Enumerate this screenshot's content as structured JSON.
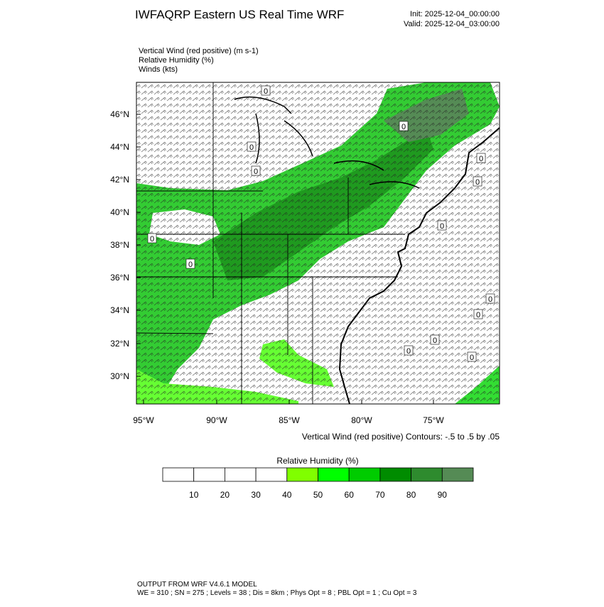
{
  "header": {
    "title": "IWFAQRP Eastern US Real Time WRF",
    "init": "Init: 2025-12-04_00:00:00",
    "valid": "Valid: 2025-12-04_03:00:00"
  },
  "fields": [
    "Vertical Wind (red positive)   (m s-1)",
    "Relative Humidity   (%)",
    "Winds   (kts)"
  ],
  "map": {
    "lat_labels": [
      "46°N",
      "44°N",
      "42°N",
      "40°N",
      "38°N",
      "36°N",
      "34°N",
      "32°N",
      "30°N"
    ],
    "lon_labels": [
      "95°W",
      "90°W",
      "85°W",
      "80°W",
      "75°W"
    ],
    "contour_labels": [
      "0",
      "0",
      "0",
      "0",
      "0",
      "0",
      "0",
      "0",
      "0",
      "0",
      "0",
      "0",
      "0",
      "0"
    ],
    "contour_note": "Vertical Wind (red positive) Contours: -.5 to .5 by .05"
  },
  "colorbar": {
    "title": "Relative Humidity   (%)",
    "labels": [
      10,
      20,
      30,
      40,
      50,
      60,
      70,
      80,
      90
    ],
    "colors": [
      "#ffffff",
      "#ffffff",
      "#ffffff",
      "#ffffff",
      "#80ff00",
      "#00ff00",
      "#00cc00",
      "#008c00",
      "#2e8b2e",
      "#558b55"
    ]
  },
  "footer": [
    "OUTPUT FROM WRF V4.6.1 MODEL",
    "WE = 310 ; SN = 275 ; Levels = 38 ; Dis = 8km ; Phys Opt = 8 ; PBL Opt = 1 ; Cu Opt = 3"
  ]
}
